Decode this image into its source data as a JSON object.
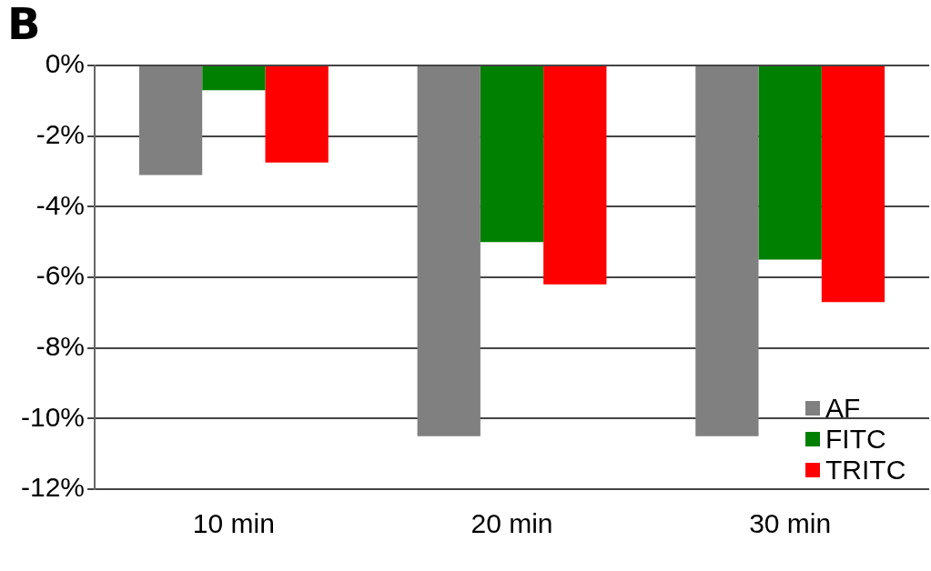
{
  "chart_data": {
    "type": "bar",
    "annotations": [
      "B"
    ],
    "categories": [
      "10 min",
      "20 min",
      "30 min"
    ],
    "series": [
      {
        "name": "AF",
        "color": "#808080",
        "values": [
          -3.1,
          -10.5,
          -10.5
        ]
      },
      {
        "name": "FITC",
        "color": "#008000",
        "values": [
          -0.7,
          -5.0,
          -5.5
        ]
      },
      {
        "name": "TRITC",
        "color": "#ff0000",
        "values": [
          -2.75,
          -6.2,
          -6.7
        ]
      }
    ],
    "ylim": [
      -12,
      0
    ],
    "yticks": [
      {
        "value": 0,
        "label": "0%"
      },
      {
        "value": -2,
        "label": "-2%"
      },
      {
        "value": -4,
        "label": "-4%"
      },
      {
        "value": -6,
        "label": "-6%"
      },
      {
        "value": -8,
        "label": "-8%"
      },
      {
        "value": -10,
        "label": "-10%"
      },
      {
        "value": -12,
        "label": "-12%"
      }
    ],
    "grid": "y",
    "legend": "bottom right"
  }
}
